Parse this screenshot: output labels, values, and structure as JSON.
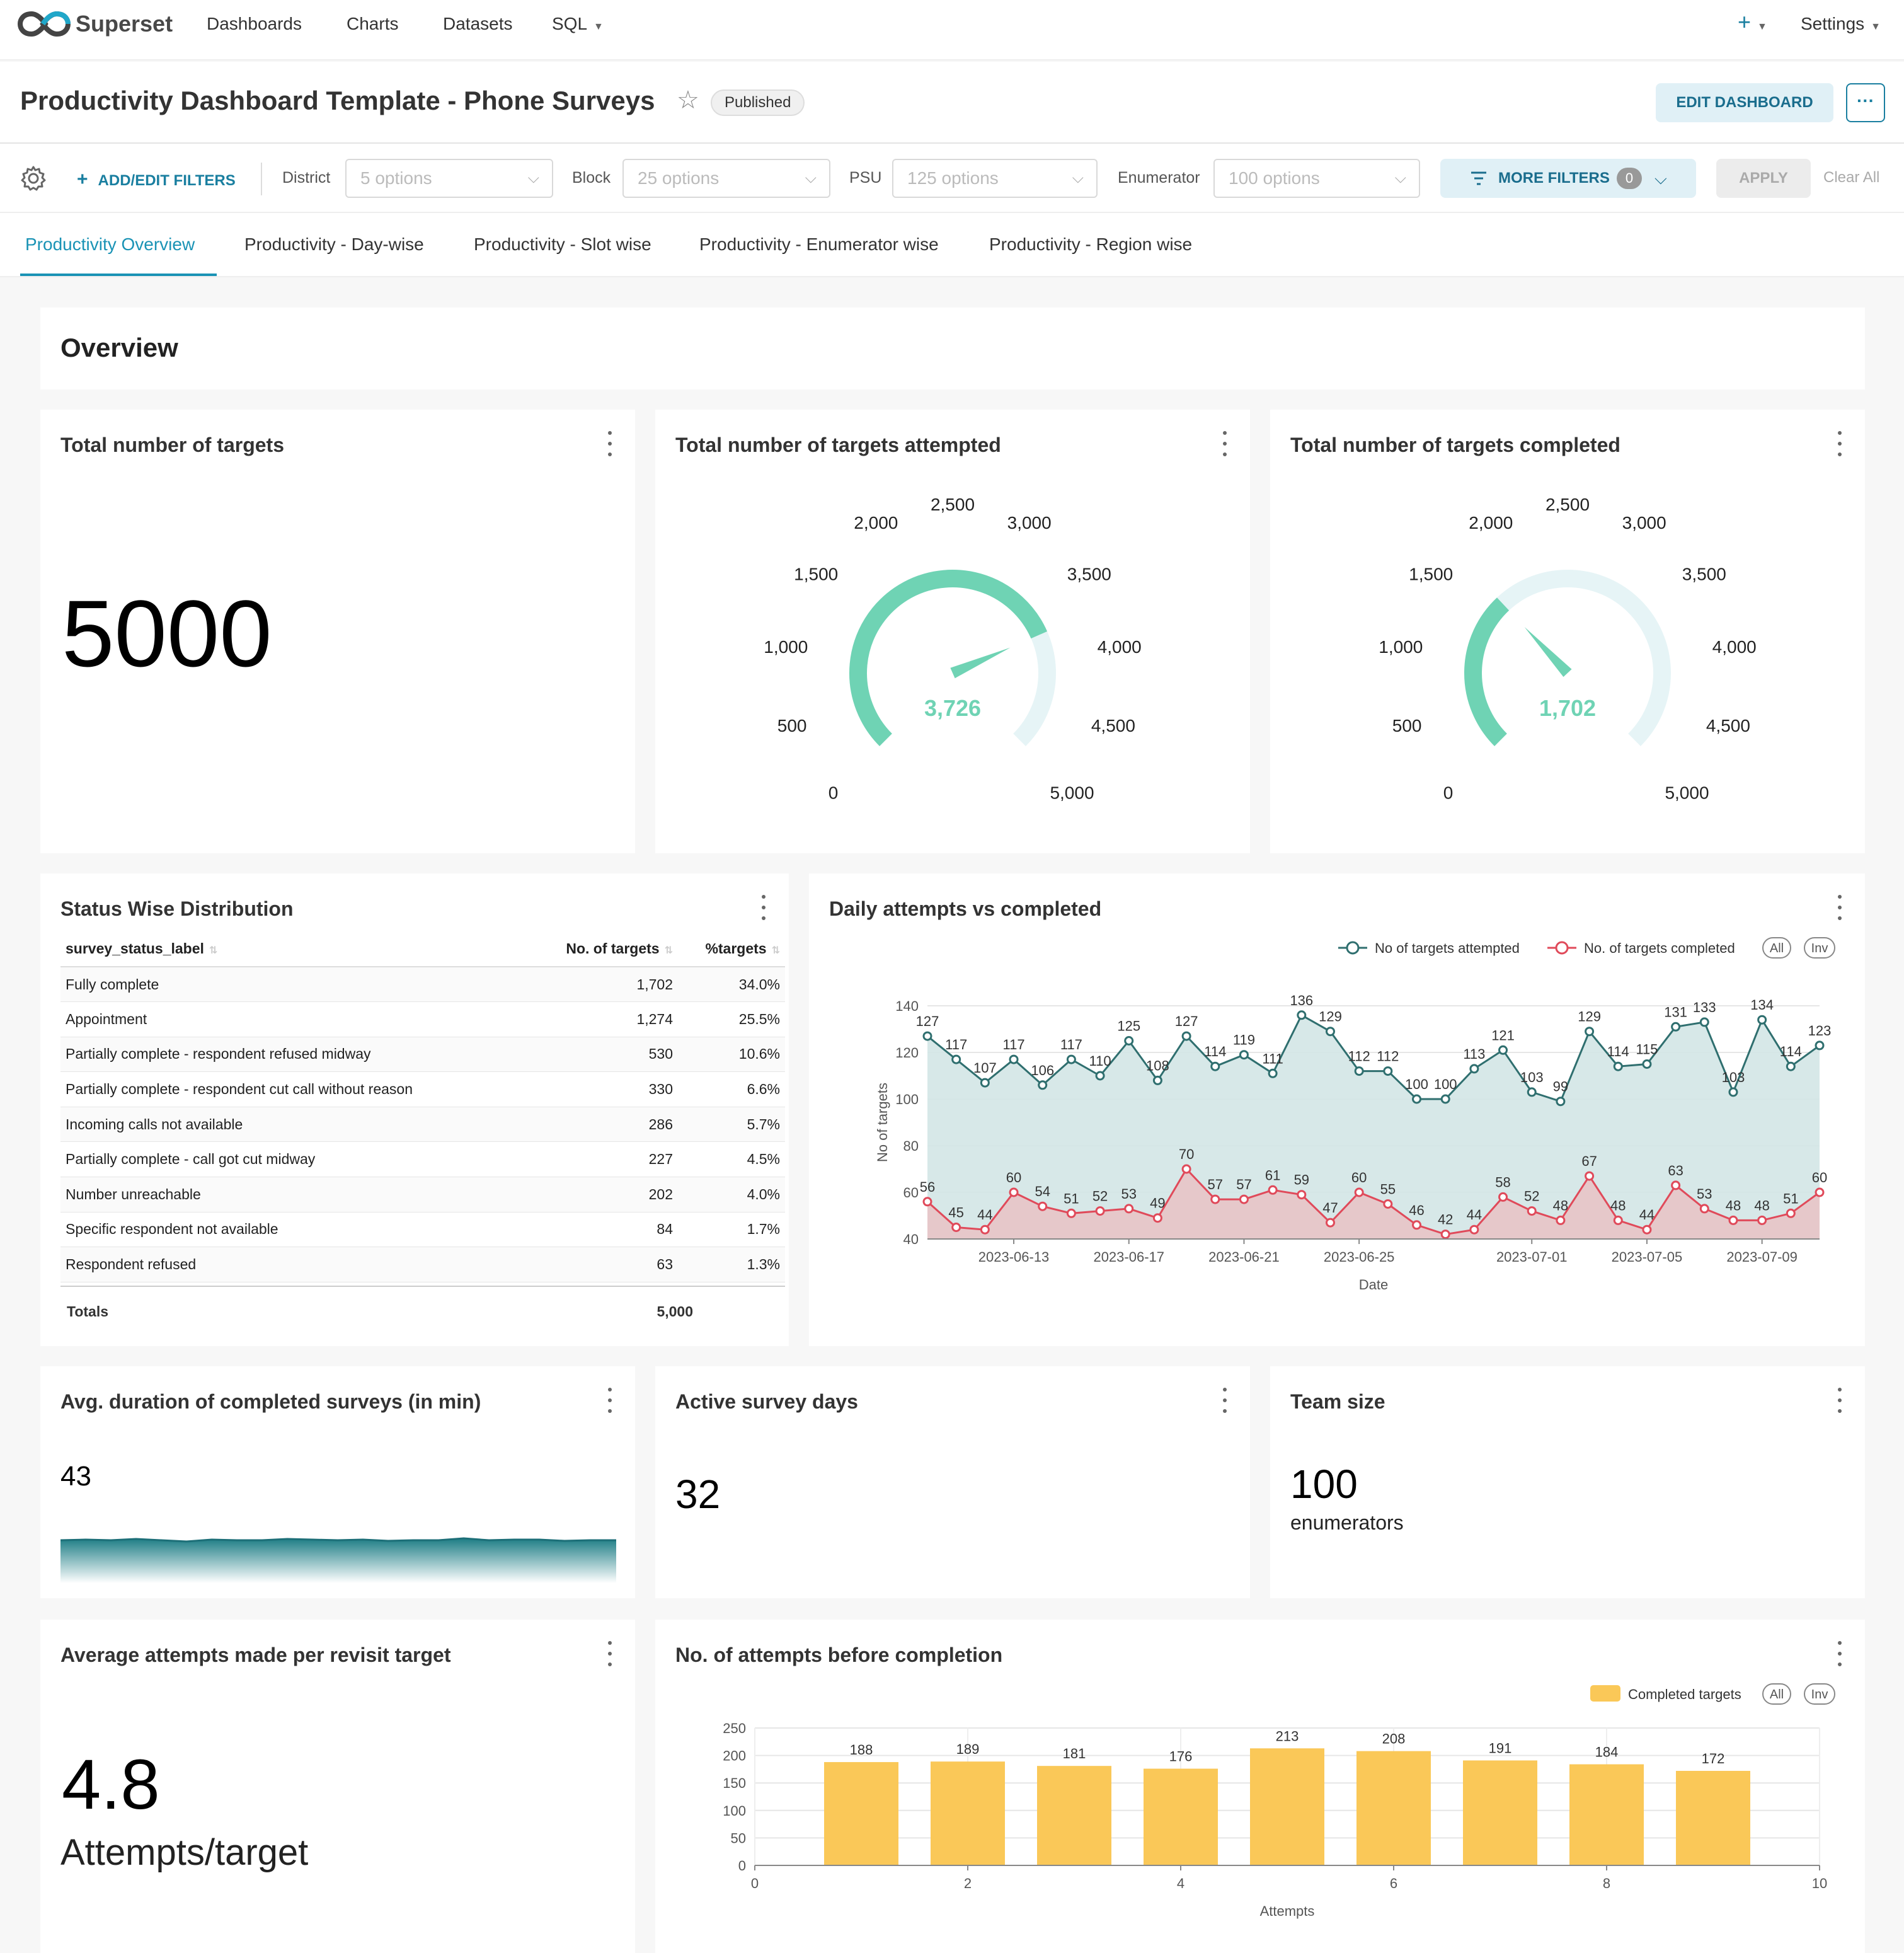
{
  "nav": {
    "brand": "Superset",
    "links": [
      "Dashboards",
      "Charts",
      "Datasets",
      "SQL"
    ],
    "plus": "+",
    "settings": "Settings"
  },
  "dashboard": {
    "title": "Productivity Dashboard Template - Phone Surveys",
    "status": "Published",
    "edit_label": "EDIT DASHBOARD",
    "more_label": "···"
  },
  "filters": {
    "add_label": "ADD/EDIT FILTERS",
    "items": [
      {
        "label": "District",
        "placeholder": "5 options"
      },
      {
        "label": "Block",
        "placeholder": "25 options"
      },
      {
        "label": "PSU",
        "placeholder": "125 options"
      },
      {
        "label": "Enumerator",
        "placeholder": "100 options"
      }
    ],
    "more_label": "MORE FILTERS",
    "more_count": "0",
    "apply_label": "APPLY",
    "clear_label": "Clear All"
  },
  "tabs": [
    "Productivity Overview",
    "Productivity - Day-wise",
    "Productivity - Slot wise",
    "Productivity - Enumerator wise",
    "Productivity - Region wise"
  ],
  "overview_title": "Overview",
  "cards": {
    "total_targets": {
      "title": "Total number of targets",
      "value": "5000"
    },
    "attempted": {
      "title": "Total number of targets attempted",
      "value": "3,726",
      "raw": 3726
    },
    "completed": {
      "title": "Total number of targets completed",
      "value": "1,702",
      "raw": 1702
    },
    "avg_duration": {
      "title": "Avg. duration of completed surveys (in min)",
      "value": "43"
    },
    "active_days": {
      "title": "Active survey days",
      "value": "32"
    },
    "team_size": {
      "title": "Team size",
      "value": "100",
      "subtitle": "enumerators"
    },
    "avg_attempts": {
      "title": "Average attempts made per revisit target",
      "value": "4.8",
      "subtitle": "Attempts/target"
    },
    "status_dist": {
      "title": "Status Wise Distribution"
    },
    "daily": {
      "title": "Daily attempts vs completed"
    },
    "before_completion": {
      "title": "No. of attempts before completion"
    }
  },
  "gauge": {
    "min": 0,
    "max": 5000,
    "tick_labels": [
      "0",
      "500",
      "1,000",
      "1,500",
      "2,000",
      "2,500",
      "3,000",
      "3,500",
      "4,000",
      "4,500",
      "5,000"
    ],
    "color": "#6fd3b4",
    "track_color": "#e6f4f6"
  },
  "status_table": {
    "headers": [
      "survey_status_label",
      "No. of targets",
      "%targets"
    ],
    "rows": [
      [
        "Fully complete",
        "1,702",
        "34.0%"
      ],
      [
        "Appointment",
        "1,274",
        "25.5%"
      ],
      [
        "Partially complete - respondent refused midway",
        "530",
        "10.6%"
      ],
      [
        "Partially complete - respondent cut call without reason",
        "330",
        "6.6%"
      ],
      [
        "Incoming calls not available",
        "286",
        "5.7%"
      ],
      [
        "Partially complete - call got cut midway",
        "227",
        "4.5%"
      ],
      [
        "Number unreachable",
        "202",
        "4.0%"
      ],
      [
        "Specific respondent not available",
        "84",
        "1.7%"
      ],
      [
        "Respondent refused",
        "63",
        "1.3%"
      ]
    ],
    "totals_label": "Totals",
    "totals_value": "5,000"
  },
  "chart_data": [
    {
      "type": "line",
      "title": "Daily attempts vs completed",
      "xlabel": "Date",
      "ylabel": "No of targets",
      "ylim": [
        40,
        140
      ],
      "yticks": [
        40,
        60,
        80,
        100,
        120,
        140
      ],
      "xtick_labels": [
        "2023-06-13",
        "2023-06-17",
        "2023-06-21",
        "2023-06-25",
        "2023-07-01",
        "2023-07-05",
        "2023-07-09"
      ],
      "xtick_index": [
        3,
        7,
        11,
        15,
        21,
        25,
        29
      ],
      "series": [
        {
          "name": "No of targets attempted",
          "color": "#2f6f6f",
          "fill": "#d3e6e6",
          "values": [
            127,
            117,
            107,
            117,
            106,
            117,
            110,
            125,
            108,
            127,
            114,
            119,
            111,
            136,
            129,
            112,
            112,
            100,
            100,
            113,
            121,
            103,
            99,
            129,
            114,
            115,
            131,
            133,
            103,
            134,
            114,
            123
          ]
        },
        {
          "name": "No. of targets completed",
          "color": "#e04a5a",
          "fill": "#e8c4c6",
          "values": [
            56,
            45,
            44,
            60,
            54,
            51,
            52,
            53,
            49,
            70,
            57,
            57,
            61,
            59,
            47,
            60,
            55,
            46,
            42,
            44,
            58,
            52,
            48,
            67,
            48,
            44,
            63,
            53,
            48,
            48,
            51,
            60
          ]
        }
      ],
      "legend_pills": [
        "All",
        "Inv"
      ],
      "grid": true,
      "legend": "top-right"
    },
    {
      "type": "bar",
      "title": "No. of attempts before completion",
      "xlabel": "Attempts",
      "ylabel": "",
      "x": [
        1,
        2,
        3,
        4,
        5,
        6,
        7,
        8,
        9
      ],
      "xlim": [
        0,
        10
      ],
      "xticks": [
        0,
        2,
        4,
        6,
        8,
        10
      ],
      "ylim": [
        0,
        250
      ],
      "yticks": [
        0,
        50,
        100,
        150,
        200,
        250
      ],
      "series": [
        {
          "name": "Completed targets",
          "color": "#fac858",
          "values": [
            188,
            189,
            181,
            176,
            213,
            208,
            191,
            184,
            172
          ]
        }
      ],
      "legend_pills": [
        "All",
        "Inv"
      ],
      "grid": true,
      "legend": "top-right"
    }
  ]
}
